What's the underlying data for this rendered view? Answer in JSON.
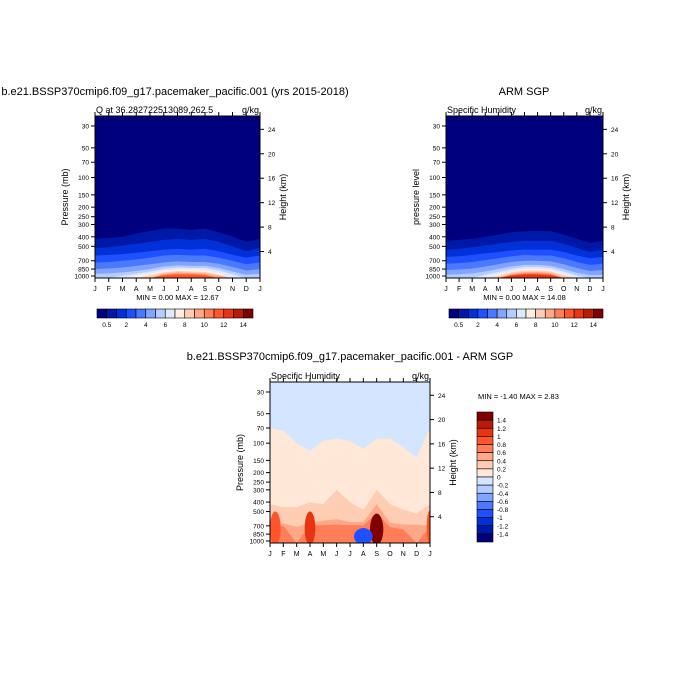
{
  "chart_data": [
    {
      "type": "heatmap",
      "title": "b.e21.BSSP370cmip6.f09_g17.pacemaker_pacific.001 (yrs 2015-2018)",
      "subtitle_left": "Q at 36.282722513089,262.5",
      "subtitle_right": "g/kg",
      "ylabel": "Pressure (mb)",
      "ylabel_right": "Height (km)",
      "stats": "MIN =   0.00 MAX =  12.67",
      "x_ticks": [
        "J",
        "F",
        "M",
        "A",
        "M",
        "J",
        "J",
        "A",
        "S",
        "O",
        "N",
        "D",
        "J"
      ],
      "y_ticks": [
        30,
        50,
        70,
        100,
        150,
        200,
        250,
        300,
        400,
        500,
        700,
        850,
        1000
      ],
      "height_ticks": [
        24,
        20,
        16,
        12,
        8,
        4
      ],
      "ylim": [
        1000,
        30
      ],
      "colorbar_labels": [
        "0.5",
        "2",
        "4",
        "6",
        "8",
        "10",
        "12",
        "14"
      ],
      "colors": [
        "#00007f",
        "#0018a8",
        "#0030d8",
        "#1f50ff",
        "#4a78ff",
        "#80a4ff",
        "#b4ccff",
        "#dce9ff",
        "#fff0e2",
        "#ffccb4",
        "#ffa888",
        "#ff7e58",
        "#ff5528",
        "#e83410",
        "#b81c08",
        "#800000"
      ],
      "bands": [
        [
          420,
          410,
          400,
          370,
          350,
          330,
          330,
          340,
          330,
          360,
          400,
          450,
          420
        ],
        [
          520,
          510,
          490,
          470,
          450,
          430,
          420,
          430,
          420,
          450,
          500,
          560,
          520
        ],
        [
          620,
          610,
          600,
          580,
          560,
          540,
          530,
          540,
          530,
          560,
          610,
          650,
          620
        ],
        [
          730,
          720,
          700,
          680,
          650,
          620,
          610,
          620,
          620,
          650,
          700,
          760,
          730
        ],
        [
          850,
          840,
          820,
          790,
          760,
          730,
          710,
          720,
          720,
          750,
          810,
          880,
          850
        ],
        [
          950,
          940,
          920,
          890,
          850,
          800,
          780,
          790,
          790,
          830,
          900,
          970,
          950
        ],
        [
          1000,
          1000,
          990,
          950,
          900,
          850,
          820,
          830,
          830,
          880,
          960,
          1000,
          1000
        ],
        [
          1000,
          1000,
          1000,
          990,
          950,
          880,
          860,
          860,
          870,
          930,
          1000,
          1000,
          1000
        ],
        [
          1000,
          1000,
          1000,
          1000,
          980,
          920,
          890,
          900,
          910,
          970,
          1000,
          1000,
          1000
        ],
        [
          1000,
          1000,
          1000,
          1000,
          1000,
          950,
          920,
          930,
          940,
          990,
          1000,
          1000,
          1000
        ],
        [
          1000,
          1000,
          1000,
          1000,
          1000,
          970,
          945,
          950,
          965,
          1000,
          1000,
          1000,
          1000
        ],
        [
          1000,
          1000,
          1000,
          1000,
          1000,
          985,
          965,
          970,
          985,
          1000,
          1000,
          1000,
          1000
        ]
      ]
    },
    {
      "type": "heatmap",
      "title": "ARM SGP",
      "subtitle_left": "Specific Humidity",
      "subtitle_right": "g/kg",
      "ylabel": "pressure level",
      "ylabel_right": "Height (km)",
      "stats": "MIN =   0.00 MAX =  14.08",
      "x_ticks": [
        "J",
        "F",
        "M",
        "A",
        "M",
        "J",
        "J",
        "A",
        "S",
        "O",
        "N",
        "D",
        "J"
      ],
      "y_ticks": [
        30,
        50,
        70,
        100,
        150,
        200,
        250,
        300,
        400,
        500,
        700,
        850,
        1000
      ],
      "height_ticks": [
        24,
        20,
        16,
        12,
        8,
        4
      ],
      "ylim": [
        1000,
        30
      ],
      "colorbar_labels": [
        "0.5",
        "2",
        "4",
        "6",
        "8",
        "10",
        "12",
        "14"
      ],
      "colors": [
        "#00007f",
        "#0018a8",
        "#0030d8",
        "#1f50ff",
        "#4a78ff",
        "#80a4ff",
        "#b4ccff",
        "#dce9ff",
        "#fff0e2",
        "#ffccb4",
        "#ffa888",
        "#ff7e58",
        "#ff5528",
        "#e83410",
        "#b81c08",
        "#800000"
      ],
      "bands": [
        [
          440,
          430,
          420,
          400,
          380,
          360,
          350,
          350,
          350,
          380,
          420,
          460,
          440
        ],
        [
          540,
          530,
          510,
          490,
          470,
          450,
          440,
          440,
          440,
          470,
          520,
          570,
          540
        ],
        [
          640,
          630,
          610,
          590,
          570,
          550,
          540,
          540,
          540,
          570,
          620,
          660,
          640
        ],
        [
          750,
          740,
          720,
          690,
          660,
          630,
          610,
          620,
          620,
          660,
          720,
          770,
          750
        ],
        [
          870,
          860,
          840,
          800,
          760,
          720,
          700,
          700,
          710,
          760,
          830,
          890,
          870
        ],
        [
          970,
          960,
          940,
          900,
          850,
          800,
          770,
          770,
          790,
          850,
          930,
          980,
          970
        ],
        [
          1000,
          1000,
          1000,
          970,
          910,
          850,
          810,
          810,
          830,
          900,
          990,
          1000,
          1000
        ],
        [
          1000,
          1000,
          1000,
          1000,
          960,
          890,
          850,
          850,
          870,
          950,
          1000,
          1000,
          1000
        ],
        [
          1000,
          1000,
          1000,
          1000,
          990,
          920,
          880,
          880,
          900,
          980,
          1000,
          1000,
          1000
        ],
        [
          1000,
          1000,
          1000,
          1000,
          1000,
          950,
          910,
          910,
          930,
          1000,
          1000,
          1000,
          1000
        ],
        [
          1000,
          1000,
          1000,
          1000,
          1000,
          970,
          935,
          935,
          955,
          1000,
          1000,
          1000,
          1000
        ],
        [
          1000,
          1000,
          1000,
          1000,
          1000,
          985,
          955,
          955,
          975,
          1000,
          1000,
          1000,
          1000
        ],
        [
          1000,
          1000,
          1000,
          1000,
          1000,
          995,
          970,
          970,
          990,
          1000,
          1000,
          1000,
          1000
        ]
      ]
    },
    {
      "type": "heatmap",
      "title": "b.e21.BSSP370cmip6.f09_g17.pacemaker_pacific.001 - ARM SGP",
      "subtitle_left": "Specific Humidity",
      "subtitle_right": "g/kg",
      "ylabel": "Pressure (mb)",
      "ylabel_right": "Height (km)",
      "stats": "MIN =  -1.40 MAX =   2.83",
      "x_ticks": [
        "J",
        "F",
        "M",
        "A",
        "M",
        "J",
        "J",
        "A",
        "S",
        "O",
        "N",
        "D",
        "J"
      ],
      "y_ticks": [
        30,
        50,
        70,
        100,
        150,
        200,
        250,
        300,
        400,
        500,
        700,
        850,
        1000
      ],
      "height_ticks": [
        24,
        20,
        16,
        12,
        8,
        4
      ],
      "ylim": [
        1000,
        30
      ],
      "colorbar_labels": [
        "1.4",
        "1.2",
        "1",
        "0.8",
        "0.6",
        "0.4",
        "0.2",
        "0",
        "-0.2",
        "-0.4",
        "-0.6",
        "-0.8",
        "-1",
        "-1.2",
        "-1.4"
      ],
      "colors": [
        "#800000",
        "#b81c08",
        "#e83410",
        "#ff5528",
        "#ff7e58",
        "#ffa888",
        "#ffccb4",
        "#ffe8d8",
        "#d4e6ff",
        "#b4ccff",
        "#80a4ff",
        "#4a78ff",
        "#1f50ff",
        "#0030d8",
        "#0018a8",
        "#00007f"
      ],
      "background": "#d4e6ff",
      "bands": [
        {
          "color": "#ffe8d8",
          "p": [
            70,
            75,
            100,
            120,
            95,
            90,
            95,
            115,
            90,
            90,
            110,
            140,
            70
          ]
        },
        {
          "color": "#ffccb4",
          "p": [
            420,
            450,
            450,
            400,
            420,
            300,
            400,
            480,
            300,
            420,
            480,
            520,
            420
          ]
        },
        {
          "color": "#ffa888",
          "p": [
            680,
            660,
            720,
            650,
            620,
            600,
            640,
            640,
            420,
            650,
            680,
            680,
            700
          ]
        },
        {
          "color": "#ff7e58",
          "p": [
            720,
            700,
            1000,
            690,
            690,
            680,
            690,
            690,
            520,
            720,
            760,
            1000,
            720
          ]
        }
      ],
      "blobs": [
        {
          "month": 0.4,
          "p": 740,
          "rm": 0.4,
          "color": "#ff5528"
        },
        {
          "month": 3,
          "p": 740,
          "rm": 0.4,
          "color": "#e83410"
        },
        {
          "month": 8,
          "p": 760,
          "rm": 0.5,
          "color": "#800000"
        },
        {
          "month": 7,
          "p": 900,
          "rm": 0.7,
          "color": "#1f50ff"
        },
        {
          "month": 12,
          "p": 730,
          "rm": 0.25,
          "color": "#ff5528"
        }
      ]
    }
  ]
}
